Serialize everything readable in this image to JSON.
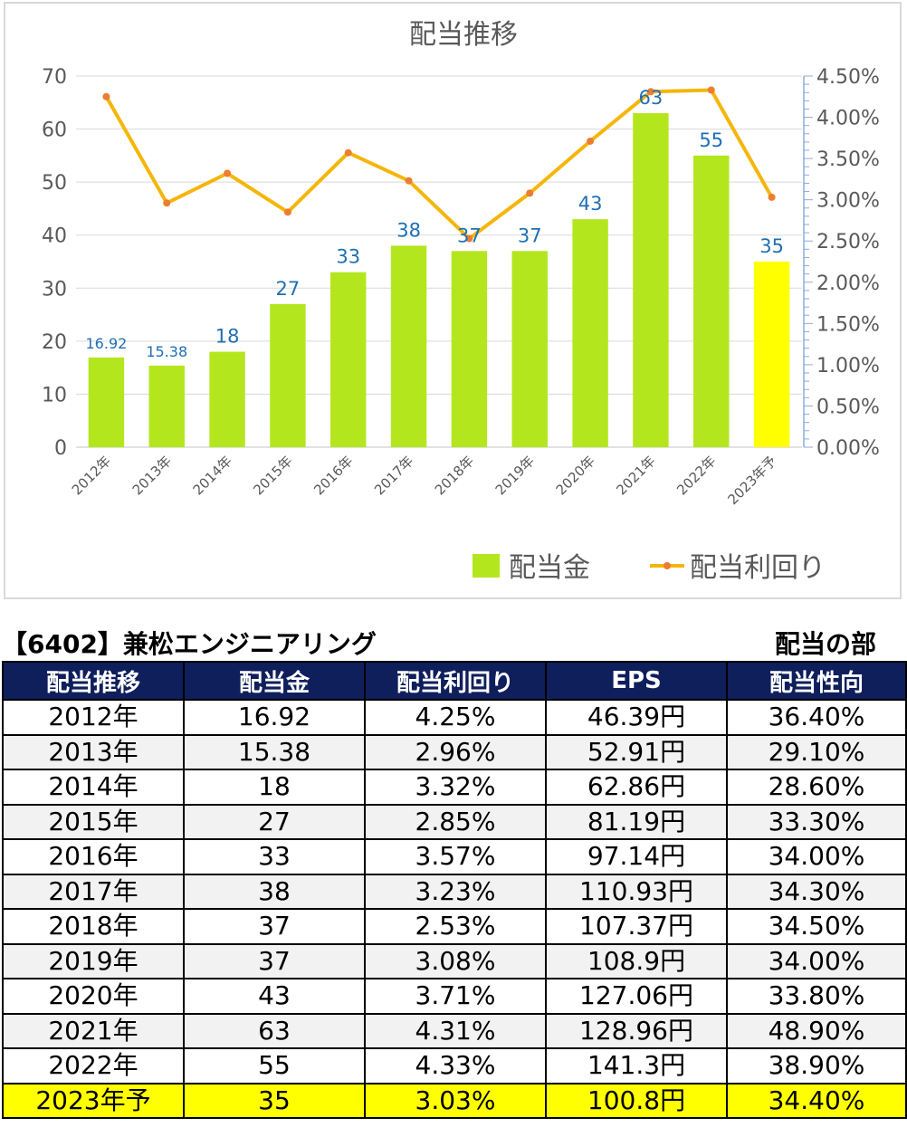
{
  "chart_data": {
    "type": "bar",
    "title": "配当推移",
    "categories": [
      "2012年",
      "2013年",
      "2014年",
      "2015年",
      "2016年",
      "2017年",
      "2018年",
      "2019年",
      "2020年",
      "2021年",
      "2022年",
      "2023年予"
    ],
    "series": [
      {
        "name": "配当金",
        "kind": "bar",
        "axis": "left",
        "values": [
          16.92,
          15.38,
          18,
          27,
          33,
          38,
          37,
          37,
          43,
          63,
          55,
          35
        ],
        "labels": [
          "16.92",
          "15.38",
          "18",
          "27",
          "33",
          "38",
          "37",
          "37",
          "43",
          "63",
          "55",
          "35"
        ],
        "color": "#b4e61e",
        "highlight_color": "#ffff00",
        "highlight_index": 11
      },
      {
        "name": "配当利回り",
        "kind": "line",
        "axis": "right",
        "values": [
          4.25,
          2.96,
          3.32,
          2.85,
          3.57,
          3.23,
          2.53,
          3.08,
          3.71,
          4.31,
          4.33,
          3.03
        ],
        "color": "#f5b60a",
        "marker_color": "#ed7d31"
      }
    ],
    "y_left": {
      "range": [
        0,
        70
      ],
      "ticks": [
        "0",
        "10",
        "20",
        "30",
        "40",
        "50",
        "60",
        "70"
      ]
    },
    "y_right": {
      "range": [
        0,
        4.5
      ],
      "ticks": [
        "0.00%",
        "0.50%",
        "1.00%",
        "1.50%",
        "2.00%",
        "2.50%",
        "3.00%",
        "3.50%",
        "4.00%",
        "4.50%"
      ]
    },
    "grid": true,
    "legend": "bottom-right"
  },
  "table": {
    "company": "【6402】兼松エンジニアリング",
    "section": "配当の部",
    "headers": [
      "配当推移",
      "配当金",
      "配当利回り",
      "EPS",
      "配当性向"
    ],
    "rows": [
      [
        "2012年",
        "16.92",
        "4.25%",
        "46.39円",
        "36.40%"
      ],
      [
        "2013年",
        "15.38",
        "2.96%",
        "52.91円",
        "29.10%"
      ],
      [
        "2014年",
        "18",
        "3.32%",
        "62.86円",
        "28.60%"
      ],
      [
        "2015年",
        "27",
        "2.85%",
        "81.19円",
        "33.30%"
      ],
      [
        "2016年",
        "33",
        "3.57%",
        "97.14円",
        "34.00%"
      ],
      [
        "2017年",
        "38",
        "3.23%",
        "110.93円",
        "34.30%"
      ],
      [
        "2018年",
        "37",
        "2.53%",
        "107.37円",
        "34.50%"
      ],
      [
        "2019年",
        "37",
        "3.08%",
        "108.9円",
        "34.00%"
      ],
      [
        "2020年",
        "43",
        "3.71%",
        "127.06円",
        "33.80%"
      ],
      [
        "2021年",
        "63",
        "4.31%",
        "128.96円",
        "48.90%"
      ],
      [
        "2022年",
        "55",
        "4.33%",
        "141.3円",
        "38.90%"
      ],
      [
        "2023年予",
        "35",
        "3.03%",
        "100.8円",
        "34.40%"
      ]
    ],
    "forecast_color": "#ffff00",
    "header_color": "#0f1f5c"
  }
}
